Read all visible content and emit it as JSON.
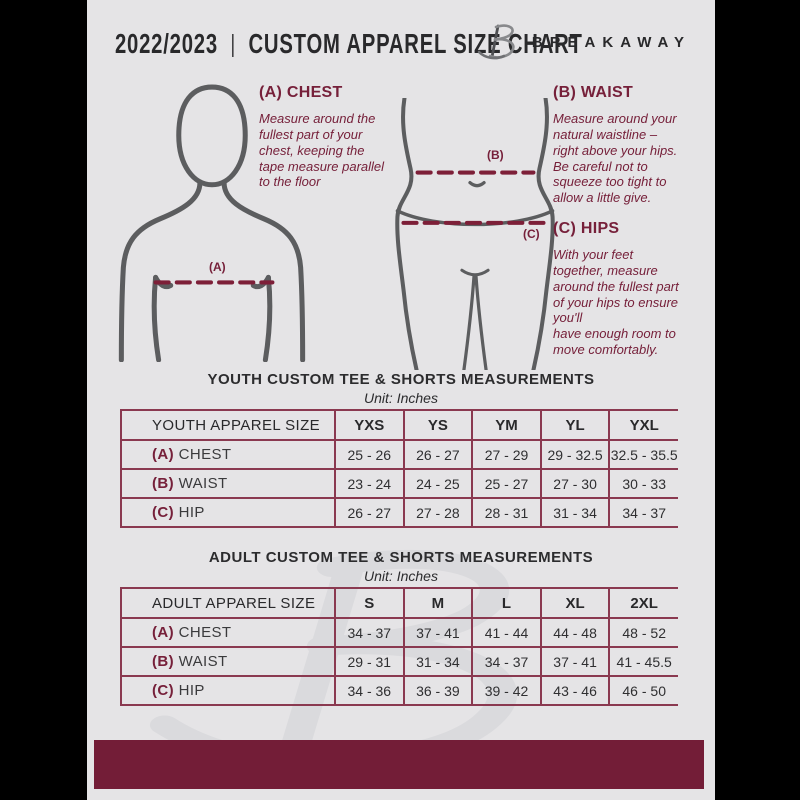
{
  "header": {
    "season": "2022/2023",
    "separator": "|",
    "title": "CUSTOM APPAREL SIZE CHART",
    "brand": "BREAKAWAY"
  },
  "colors": {
    "accent_maroon": "#76203a",
    "footer_bar": "#731d37",
    "table_border": "#8a3950",
    "silhouette_gray": "#5c5d5f",
    "page_background": "#e5e4e6"
  },
  "instructions": [
    {
      "heading": "(A) CHEST",
      "body": "Measure around the\nfullest part of your\nchest, keeping the\ntape measure parallel\nto the floor"
    },
    {
      "heading": "(B) WAIST",
      "body": "Measure around your\nnatural waistline –\nright above your hips.\nBe careful not to\nsqueeze too tight to\nallow a little give."
    },
    {
      "heading": "(C) HIPS",
      "body": "With your feet\ntogether, measure\naround the fullest part\nof your hips to ensure\nyou'll\nhave enough room to\nmove comfortably."
    }
  ],
  "diagram_labels": {
    "chest": "(A)",
    "waist": "(B)",
    "hip": "(C)"
  },
  "tables": [
    {
      "title": "YOUTH CUSTOM TEE & SHORTS MEASUREMENTS",
      "unit": "Unit: Inches",
      "size_label": "YOUTH APPAREL SIZE",
      "sizes": [
        "YXS",
        "YS",
        "YM",
        "YL",
        "YXL"
      ],
      "rows": [
        {
          "key": "(A)",
          "label": "CHEST",
          "values": [
            "25 - 26",
            "26 - 27",
            "27 - 29",
            "29 - 32.5",
            "32.5 - 35.5"
          ]
        },
        {
          "key": "(B)",
          "label": "WAIST",
          "values": [
            "23 - 24",
            "24 - 25",
            "25 - 27",
            "27 - 30",
            "30 - 33"
          ]
        },
        {
          "key": "(C)",
          "label": "HIP",
          "values": [
            "26 - 27",
            "27 - 28",
            "28 - 31",
            "31 - 34",
            "34 - 37"
          ]
        }
      ]
    },
    {
      "title": "ADULT CUSTOM TEE & SHORTS MEASUREMENTS",
      "unit": "Unit: Inches",
      "size_label": "ADULT APPAREL SIZE",
      "sizes": [
        "S",
        "M",
        "L",
        "XL",
        "2XL"
      ],
      "rows": [
        {
          "key": "(A)",
          "label": "CHEST",
          "values": [
            "34 - 37",
            "37 - 41",
            "41 - 44",
            "44 - 48",
            "48 - 52"
          ]
        },
        {
          "key": "(B)",
          "label": "WAIST",
          "values": [
            "29 - 31",
            "31 - 34",
            "34 - 37",
            "37 - 41",
            "41 - 45.5"
          ]
        },
        {
          "key": "(C)",
          "label": "HIP",
          "values": [
            "34 - 36",
            "36 - 39",
            "39 - 42",
            "43 - 46",
            "46 - 50"
          ]
        }
      ]
    }
  ]
}
